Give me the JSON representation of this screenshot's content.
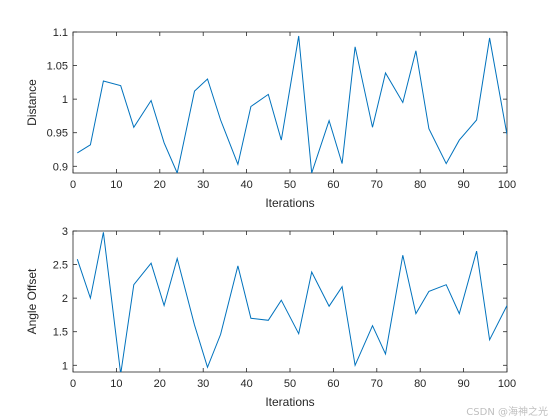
{
  "chart_data": [
    {
      "type": "line",
      "xlabel": "Iterations",
      "ylabel": "Distance",
      "xlim": [
        0,
        100
      ],
      "ylim": [
        0.89,
        1.1
      ],
      "xticks": [
        0,
        10,
        20,
        30,
        40,
        50,
        60,
        70,
        80,
        90,
        100
      ],
      "yticks": [
        0.9,
        0.95,
        1,
        1.05,
        1.1
      ],
      "ytick_labels": [
        "0.9",
        "0.95",
        "1",
        "1.05",
        "1.1"
      ],
      "grid": false,
      "color": "#0072bd",
      "x": [
        1,
        4,
        7,
        11,
        14,
        18,
        21,
        24,
        28,
        31,
        34,
        38,
        41,
        45,
        48,
        52,
        55,
        59,
        62,
        65,
        69,
        72,
        76,
        79,
        82,
        86,
        89,
        93,
        96,
        100
      ],
      "y": [
        0.92,
        0.932,
        1.027,
        1.02,
        0.958,
        0.998,
        0.935,
        0.89,
        1.012,
        1.03,
        0.969,
        0.903,
        0.989,
        1.007,
        0.939,
        1.094,
        0.89,
        0.968,
        0.904,
        1.078,
        0.958,
        1.039,
        0.995,
        1.072,
        0.956,
        0.904,
        0.939,
        0.969,
        1.091,
        0.947
      ]
    },
    {
      "type": "line",
      "xlabel": "Iterations",
      "ylabel": "Angle Offset",
      "xlim": [
        0,
        100
      ],
      "ylim": [
        0.9,
        3
      ],
      "xticks": [
        0,
        10,
        20,
        30,
        40,
        50,
        60,
        70,
        80,
        90,
        100
      ],
      "yticks": [
        1,
        1.5,
        2,
        2.5,
        3
      ],
      "ytick_labels": [
        "1",
        "1.5",
        "2",
        "2.5",
        "3"
      ],
      "grid": false,
      "color": "#0072bd",
      "x": [
        1,
        4,
        7,
        11,
        14,
        18,
        21,
        24,
        28,
        31,
        34,
        38,
        41,
        45,
        48,
        52,
        55,
        59,
        62,
        65,
        69,
        72,
        76,
        79,
        82,
        86,
        89,
        93,
        96,
        100
      ],
      "y": [
        2.58,
        2.0,
        2.98,
        0.87,
        2.2,
        2.52,
        1.89,
        2.59,
        1.6,
        0.97,
        1.46,
        2.48,
        1.7,
        1.67,
        1.97,
        1.47,
        2.39,
        1.88,
        2.17,
        1.0,
        1.59,
        1.17,
        2.64,
        1.77,
        2.1,
        2.2,
        1.77,
        2.7,
        1.38,
        1.89
      ]
    }
  ],
  "watermark": "CSDN @海神之光"
}
